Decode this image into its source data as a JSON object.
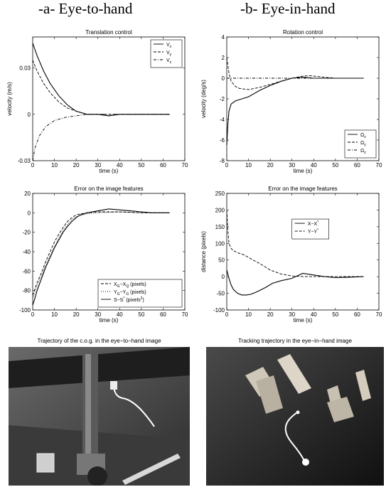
{
  "columns": {
    "a": "-a- Eye-to-hand",
    "b": "-b- Eye-in-hand"
  },
  "chart_data": [
    {
      "id": "translation",
      "type": "line",
      "title": "Translation control",
      "xlabel": "time (s)",
      "ylabel": "velocity (m/s)",
      "xlim": [
        0,
        70
      ],
      "ylim": [
        -0.03,
        0.05
      ],
      "xticks": [
        0,
        10,
        20,
        30,
        40,
        50,
        60,
        70
      ],
      "yticks": [
        -0.03,
        0,
        0.03
      ],
      "ytick_labels": [
        "-0.03",
        "0",
        "0.03"
      ],
      "legend_position": "top-right",
      "grid": false,
      "series": [
        {
          "name": "V",
          "sub": "x",
          "dash": "solid",
          "x": [
            0,
            2,
            5,
            8,
            12,
            16,
            20,
            25,
            30,
            35,
            40,
            50,
            63
          ],
          "y": [
            0.046,
            0.038,
            0.028,
            0.02,
            0.012,
            0.006,
            0.002,
            0.0,
            0.0,
            -0.001,
            0.0,
            0.0,
            0.0
          ]
        },
        {
          "name": "V",
          "sub": "y",
          "dash": "dashed",
          "x": [
            0,
            2,
            5,
            8,
            12,
            16,
            20,
            25,
            30,
            40,
            50,
            63
          ],
          "y": [
            0.035,
            0.028,
            0.02,
            0.014,
            0.008,
            0.004,
            0.002,
            0.0,
            0.0,
            0.0,
            0.0,
            0.0
          ]
        },
        {
          "name": "V",
          "sub": "z",
          "dash": "dashdot",
          "x": [
            0,
            1,
            3,
            6,
            10,
            15,
            20,
            25,
            30,
            40,
            50,
            63
          ],
          "y": [
            -0.03,
            -0.022,
            -0.014,
            -0.008,
            -0.004,
            -0.002,
            -0.001,
            0.0,
            0.0,
            0.0,
            0.0,
            0.0
          ]
        }
      ]
    },
    {
      "id": "rotation",
      "type": "line",
      "title": "Rotation control",
      "xlabel": "time (s)",
      "ylabel": "velocity (deg/s)",
      "xlim": [
        0,
        70
      ],
      "ylim": [
        -8,
        4
      ],
      "xticks": [
        0,
        10,
        20,
        30,
        40,
        50,
        60,
        70
      ],
      "yticks": [
        -8,
        -6,
        -4,
        -2,
        0,
        2,
        4
      ],
      "ytick_labels": [
        "-8",
        "-6",
        "-4",
        "-2",
        "0",
        "2",
        "4"
      ],
      "legend_position": "bottom-right",
      "grid": false,
      "series": [
        {
          "name": "Ω",
          "sub": "x",
          "dash": "solid",
          "x": [
            0,
            0.5,
            1,
            2,
            4,
            7,
            10,
            15,
            20,
            25,
            30,
            35,
            40,
            50,
            63
          ],
          "y": [
            -6.5,
            -4.5,
            -3.2,
            -2.5,
            -2.2,
            -2.0,
            -1.8,
            -1.2,
            -0.7,
            -0.3,
            0.0,
            0.1,
            0.0,
            0.0,
            0.0
          ]
        },
        {
          "name": "Ω",
          "sub": "y",
          "dash": "dashed",
          "x": [
            0,
            1,
            2,
            4,
            6,
            10,
            15,
            20,
            25,
            30,
            35,
            38,
            45,
            50,
            63
          ],
          "y": [
            2.0,
            0.5,
            -0.3,
            -0.8,
            -1.0,
            -1.1,
            -0.9,
            -0.6,
            -0.3,
            0.0,
            0.2,
            0.25,
            0.1,
            0.0,
            0.0
          ]
        },
        {
          "name": "Ω",
          "sub": "z",
          "dash": "dashdot",
          "x": [
            0,
            5,
            10,
            20,
            30,
            40,
            50,
            63
          ],
          "y": [
            0.0,
            0.0,
            0.0,
            0.0,
            0.0,
            0.0,
            0.0,
            0.0
          ]
        }
      ]
    },
    {
      "id": "error_a",
      "type": "line",
      "title": "Error on the image features",
      "xlabel": "time (s)",
      "ylabel": "",
      "xlim": [
        0,
        70
      ],
      "ylim": [
        -100,
        20
      ],
      "xticks": [
        0,
        10,
        20,
        30,
        40,
        50,
        60,
        70
      ],
      "yticks": [
        -100,
        -80,
        -60,
        -40,
        -20,
        0,
        20
      ],
      "ytick_labels": [
        "-100",
        "-80",
        "-60",
        "-40",
        "-20",
        "0",
        "20"
      ],
      "legend_position": "bottom-right",
      "grid": false,
      "series": [
        {
          "name": "X",
          "sub": "G",
          "rest": "−X",
          "rest_sub": "Q",
          "suffix": " (pixels)",
          "dash": "dashed",
          "x": [
            0,
            2,
            4,
            6,
            8,
            10,
            12,
            14,
            16,
            18,
            20,
            25,
            30,
            40,
            50,
            63
          ],
          "y": [
            -85,
            -72,
            -62,
            -50,
            -40,
            -30,
            -22,
            -15,
            -9,
            -5,
            -2,
            0,
            1,
            1,
            0,
            0
          ]
        },
        {
          "name": "Y",
          "sub": "G",
          "rest": "−Y",
          "rest_sub": "G",
          "suffix": " (pixels)",
          "dash": "dotted",
          "x": [
            0,
            2,
            4,
            6,
            8,
            10,
            12,
            14,
            16,
            18,
            20,
            25,
            30,
            40,
            50,
            63
          ],
          "y": [
            -88,
            -75,
            -65,
            -54,
            -44,
            -35,
            -26,
            -18,
            -12,
            -7,
            -4,
            -1,
            0,
            1,
            0,
            0
          ]
        },
        {
          "name": "S−S",
          "sup": "*",
          "suffix": " (pixels",
          "suffix_sup": "2",
          "suffix_end": ")",
          "dash": "solid",
          "x": [
            0,
            1,
            2,
            4,
            6,
            8,
            10,
            12,
            14,
            16,
            18,
            20,
            22,
            25,
            30,
            35,
            40,
            45,
            50,
            55,
            63
          ],
          "y": [
            -95,
            -88,
            -80,
            -68,
            -56,
            -46,
            -36,
            -28,
            -20,
            -14,
            -9,
            -5,
            -2,
            0,
            2,
            4,
            3,
            2,
            1,
            0,
            0
          ]
        }
      ]
    },
    {
      "id": "error_b",
      "type": "line",
      "title": "Error on the image features",
      "xlabel": "time (s)",
      "ylabel": "distance (pixels)",
      "xlim": [
        0,
        70
      ],
      "ylim": [
        -100,
        250
      ],
      "xticks": [
        0,
        10,
        20,
        30,
        40,
        50,
        60,
        70
      ],
      "yticks": [
        -100,
        -50,
        0,
        50,
        100,
        150,
        200,
        250
      ],
      "ytick_labels": [
        "-100",
        "-50",
        "0",
        "50",
        "100",
        "150",
        "200",
        "250"
      ],
      "legend_position": "top-center",
      "grid": false,
      "series": [
        {
          "name": "X−X",
          "sup": "*",
          "dash": "solid",
          "x": [
            0,
            1,
            2,
            3,
            5,
            7,
            9,
            11,
            13,
            15,
            18,
            21,
            25,
            30,
            35,
            40,
            45,
            50,
            55,
            63
          ],
          "y": [
            20,
            -5,
            -25,
            -38,
            -50,
            -55,
            -55,
            -53,
            -48,
            -42,
            -32,
            -20,
            -12,
            -5,
            10,
            5,
            0,
            -3,
            -2,
            0
          ]
        },
        {
          "name": "Y−Y",
          "sup": "*",
          "dash": "dashed",
          "x": [
            0,
            0.5,
            1,
            2,
            3,
            5,
            8,
            10,
            12,
            15,
            18,
            20,
            25,
            30,
            35,
            40,
            50,
            63
          ],
          "y": [
            200,
            140,
            100,
            85,
            78,
            72,
            65,
            58,
            50,
            40,
            28,
            20,
            8,
            2,
            0,
            0,
            0,
            0
          ]
        }
      ]
    }
  ],
  "photos": {
    "a": {
      "title": "Trajectory of the c.o.g. in the eye−to−hand image"
    },
    "b": {
      "title": "Tracking trajectory in the eye−in−hand image"
    }
  }
}
